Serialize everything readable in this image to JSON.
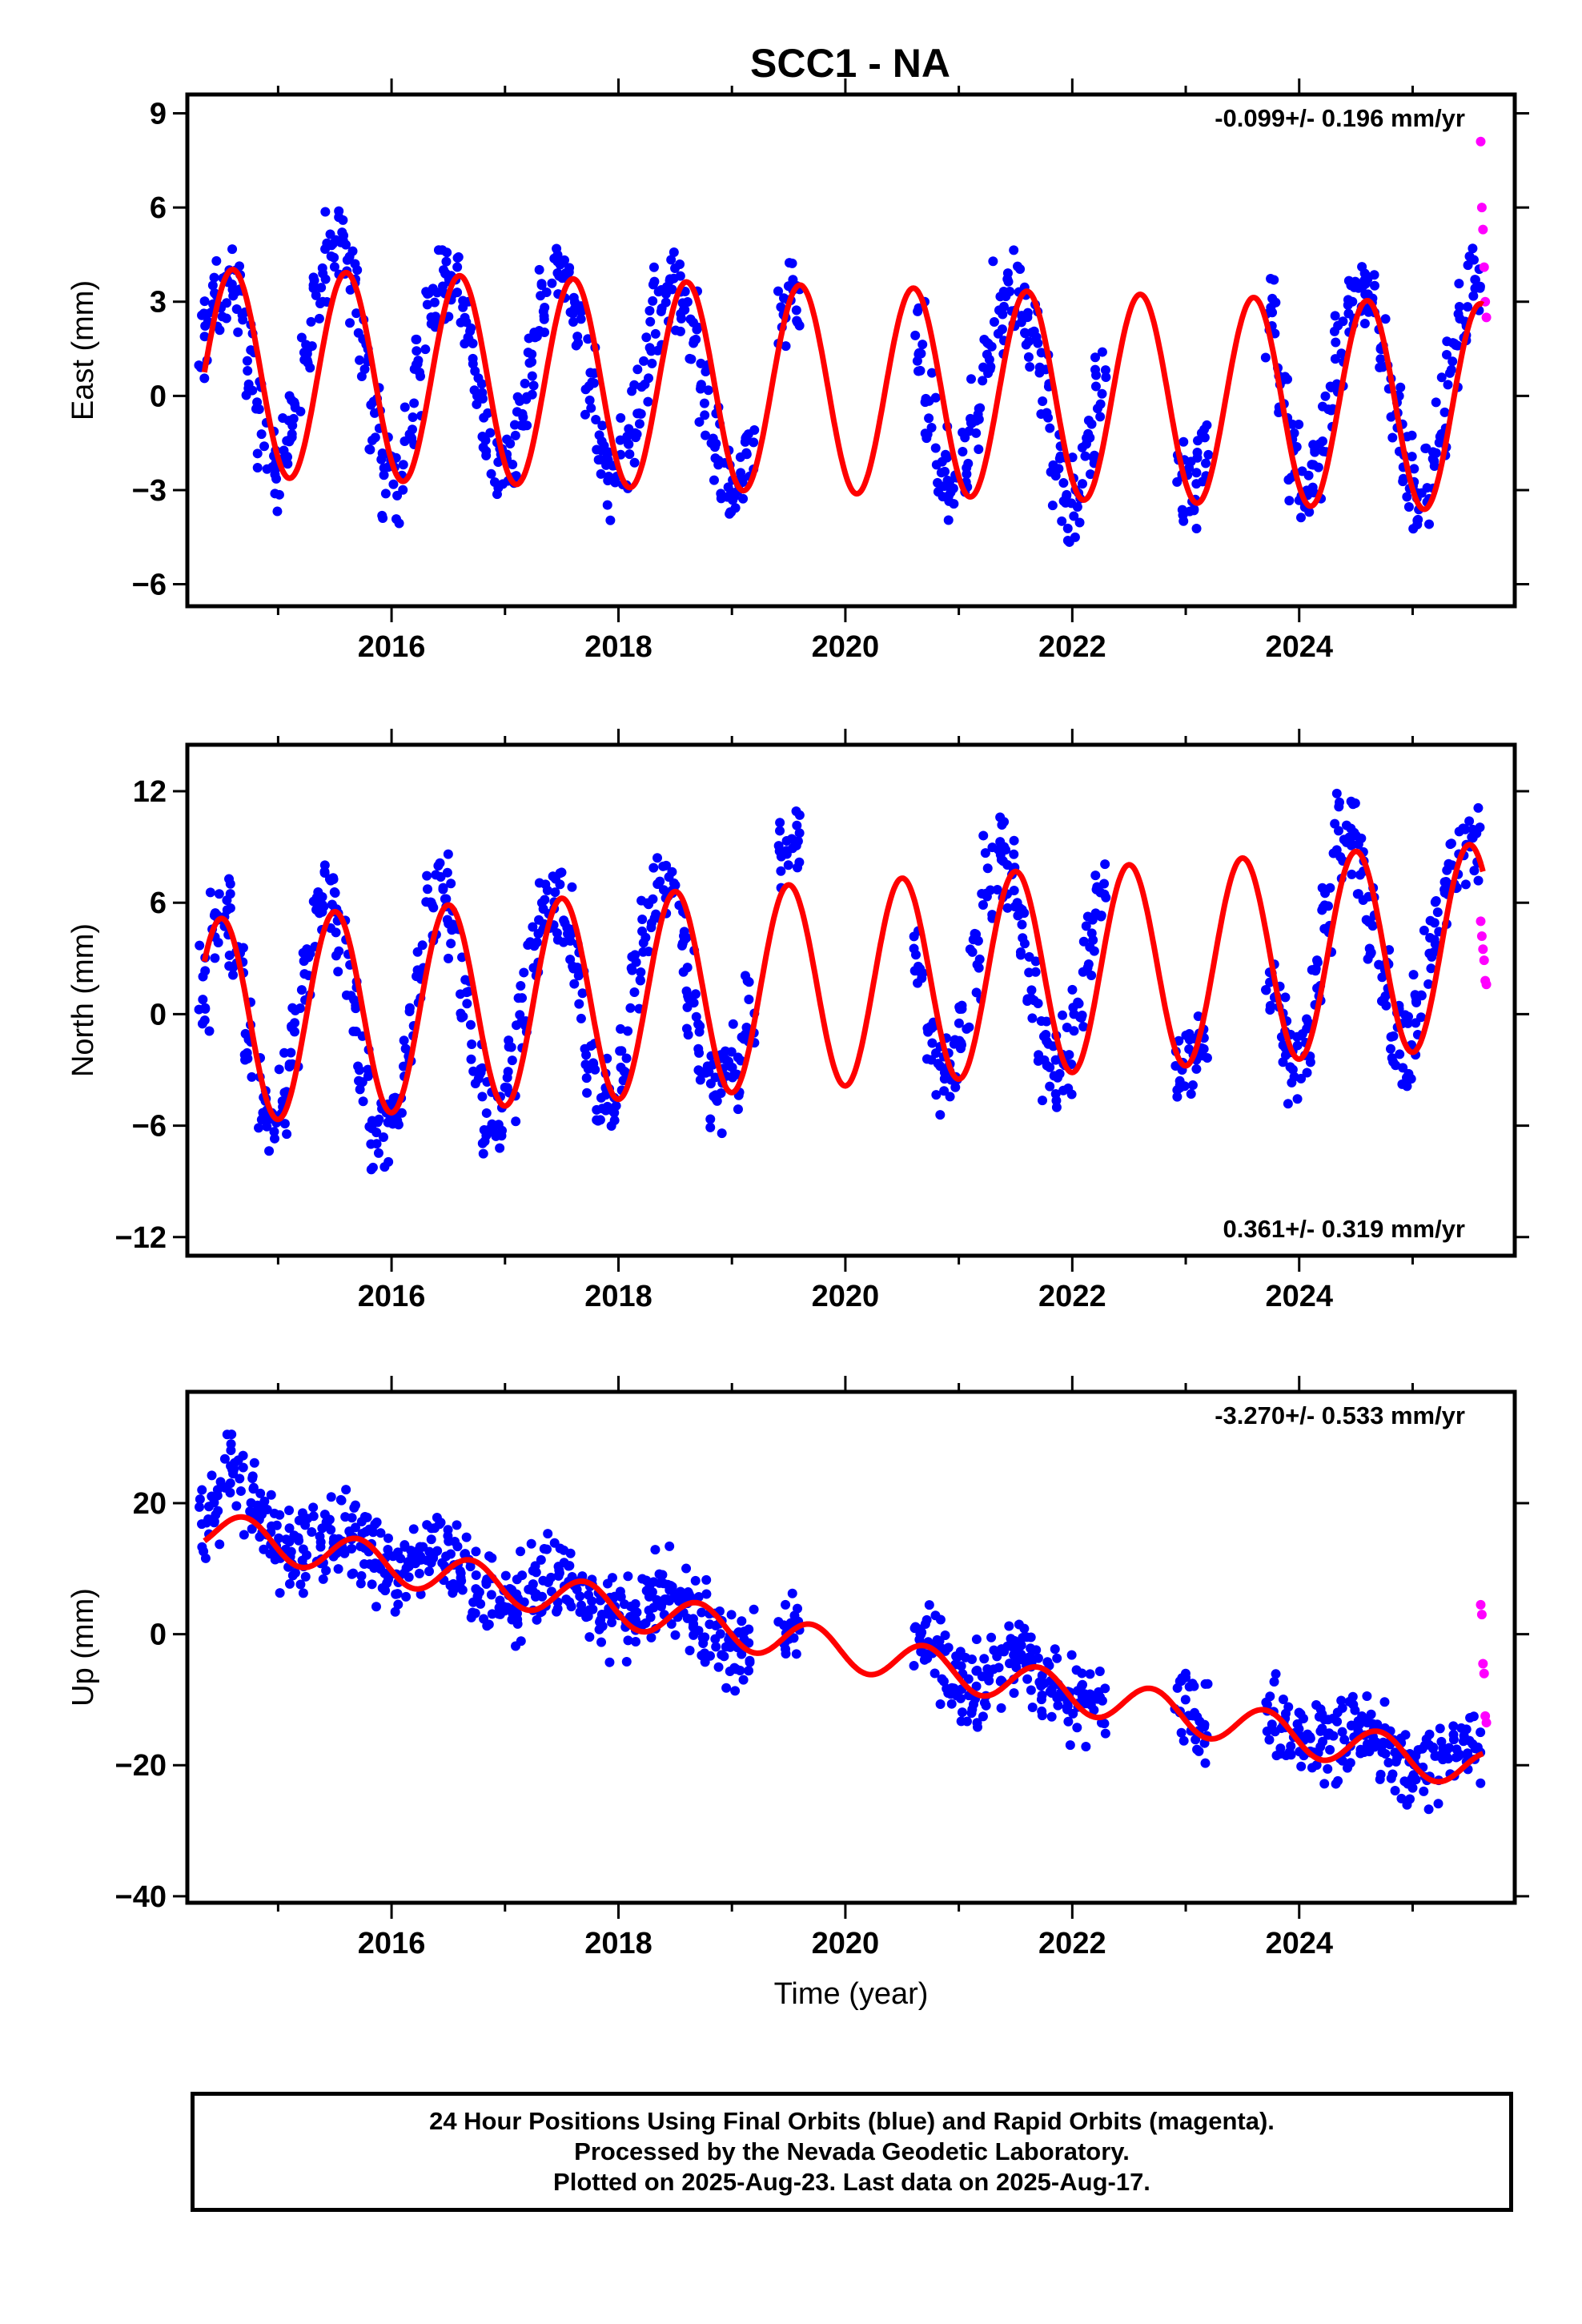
{
  "title": "SCC1 - NA",
  "chart_data": [
    {
      "type": "scatter",
      "ylabel": "East (mm)",
      "xlabel": "",
      "rate_label": "-0.099+/- 0.196 mm/yr",
      "xlim": [
        2014.2,
        2025.9
      ],
      "ylim": [
        -6.7,
        9.6
      ],
      "yticks": [
        -6,
        -3,
        0,
        3,
        6,
        9
      ],
      "xticks": [
        2016,
        2018,
        2020,
        2022,
        2024
      ],
      "xtick_labels": [
        "2016",
        "2018",
        "2020",
        "2022",
        "2024"
      ],
      "model": {
        "offset": 0.75,
        "rate_mm_yr": -0.099,
        "amplitude": 3.3,
        "peak_phase_yr": 0.6
      },
      "series": [
        {
          "color": "#0000ff",
          "x": [
            2014.35,
            2014.45,
            2014.55,
            2014.65,
            2014.75,
            2014.85,
            2014.95,
            2015.05,
            2015.15,
            2015.25,
            2015.35,
            2015.45,
            2015.55,
            2015.65,
            2015.75,
            2015.85,
            2015.95,
            2016.05,
            2016.15,
            2016.25,
            2016.35,
            2016.45,
            2016.55,
            2016.65,
            2016.75,
            2016.85,
            2016.95,
            2017.05,
            2017.15,
            2017.25,
            2017.35,
            2017.45,
            2017.55,
            2017.65,
            2017.75,
            2017.85,
            2017.95,
            2018.05,
            2018.15,
            2018.25,
            2018.35,
            2018.45,
            2018.55,
            2018.65,
            2018.75,
            2018.85,
            2018.95,
            2019.05,
            2019.15,
            2019.45,
            2019.55,
            2020.65,
            2020.75,
            2020.85,
            2020.95,
            2021.05,
            2021.15,
            2021.25,
            2021.35,
            2021.45,
            2021.55,
            2021.65,
            2021.75,
            2021.85,
            2021.95,
            2022.05,
            2022.15,
            2022.25,
            2022.95,
            2023.05,
            2023.15,
            2023.75,
            2023.85,
            2023.95,
            2024.05,
            2024.15,
            2024.25,
            2024.35,
            2024.45,
            2024.55,
            2024.65,
            2024.75,
            2024.85,
            2024.95,
            2025.05,
            2025.15,
            2025.25,
            2025.35,
            2025.45,
            2025.55
          ],
          "y": [
            1.9,
            3.1,
            3.9,
            3.4,
            1.3,
            -0.9,
            -2.3,
            -1.8,
            -0.5,
            1.4,
            3.1,
            4.3,
            4.8,
            3.6,
            1.5,
            -0.8,
            -2.4,
            -2.8,
            -1.3,
            0.9,
            2.8,
            4.0,
            3.7,
            2.3,
            0.2,
            -1.6,
            -2.6,
            -2.2,
            -0.7,
            1.2,
            2.9,
            3.8,
            3.4,
            2.3,
            0.4,
            -1.5,
            -2.6,
            -2.1,
            -0.6,
            1.3,
            2.7,
            3.6,
            3.5,
            2.1,
            0.1,
            -1.8,
            -2.9,
            -2.6,
            -1.2,
            2.6,
            3.4,
            1.9,
            -0.3,
            -2.4,
            -3.0,
            -2.0,
            -0.4,
            1.4,
            2.8,
            3.3,
            3.1,
            1.8,
            -0.1,
            -2.2,
            -3.3,
            -3.0,
            -1.6,
            0.4,
            -2.9,
            -3.3,
            -2.1,
            2.4,
            0.3,
            -2.1,
            -3.5,
            -2.5,
            -0.6,
            1.3,
            2.7,
            3.2,
            2.9,
            1.4,
            -0.5,
            -2.4,
            -3.6,
            -2.8,
            -0.9,
            1.2,
            2.8,
            4.0
          ]
        },
        {
          "color": "#ff00ff",
          "x": [
            2025.6,
            2025.61,
            2025.62,
            2025.63,
            2025.64,
            2025.65
          ],
          "y": [
            8.1,
            6.0,
            5.3,
            4.1,
            3.0,
            2.5
          ]
        }
      ]
    },
    {
      "type": "scatter",
      "ylabel": "North (mm)",
      "xlabel": "",
      "rate_label": "0.361+/- 0.319 mm/yr",
      "xlim": [
        2014.2,
        2025.9
      ],
      "ylim": [
        -13,
        14.5
      ],
      "yticks": [
        -12,
        -6,
        0,
        6,
        12
      ],
      "ytick_labels": [
        "−12",
        "−6",
        "0",
        "6",
        "12"
      ],
      "xticks": [
        2016,
        2018,
        2020,
        2022,
        2024
      ],
      "xtick_labels": [
        "2016",
        "2018",
        "2020",
        "2022",
        "2024"
      ],
      "model": {
        "offset": -0.4,
        "rate_mm_yr": 0.361,
        "amplitude": 5.5,
        "peak_phase_yr": 0.5
      },
      "series": [
        {
          "color": "#0000ff",
          "x": [
            2014.35,
            2014.45,
            2014.55,
            2014.65,
            2014.75,
            2014.85,
            2014.95,
            2015.05,
            2015.15,
            2015.25,
            2015.35,
            2015.45,
            2015.55,
            2015.65,
            2015.75,
            2015.85,
            2015.95,
            2016.05,
            2016.15,
            2016.25,
            2016.35,
            2016.45,
            2016.55,
            2016.65,
            2016.75,
            2016.85,
            2016.95,
            2017.05,
            2017.15,
            2017.25,
            2017.35,
            2017.45,
            2017.55,
            2017.65,
            2017.75,
            2017.85,
            2017.95,
            2018.05,
            2018.15,
            2018.25,
            2018.35,
            2018.45,
            2018.55,
            2018.65,
            2018.75,
            2018.85,
            2018.95,
            2019.05,
            2019.15,
            2019.45,
            2019.55,
            2020.65,
            2020.75,
            2020.85,
            2020.95,
            2021.05,
            2021.15,
            2021.25,
            2021.35,
            2021.45,
            2021.55,
            2021.65,
            2021.75,
            2021.85,
            2021.95,
            2022.05,
            2022.15,
            2022.25,
            2022.95,
            2023.05,
            2023.15,
            2023.75,
            2023.85,
            2023.95,
            2024.05,
            2024.15,
            2024.25,
            2024.35,
            2024.45,
            2024.55,
            2024.65,
            2024.75,
            2024.85,
            2024.95,
            2025.05,
            2025.15,
            2025.25,
            2025.35,
            2025.45,
            2025.55
          ],
          "y": [
            1.5,
            4.6,
            5.2,
            2.6,
            -1.4,
            -4.8,
            -6.0,
            -4.4,
            -0.9,
            2.9,
            5.6,
            6.4,
            4.5,
            0.9,
            -3.0,
            -5.9,
            -6.4,
            -5.0,
            -1.6,
            2.7,
            5.6,
            6.6,
            4.5,
            0.8,
            -3.2,
            -5.5,
            -5.6,
            -3.4,
            0.3,
            3.7,
            6.0,
            6.4,
            4.4,
            1.3,
            -2.6,
            -4.9,
            -4.6,
            -2.6,
            1.2,
            4.7,
            6.9,
            6.9,
            4.6,
            0.9,
            -2.9,
            -4.4,
            -4.2,
            -2.6,
            0.3,
            8.5,
            9.2,
            2.5,
            -1.1,
            -3.1,
            -3.0,
            -0.9,
            3.1,
            7.0,
            8.6,
            7.7,
            4.8,
            1.1,
            -2.2,
            -3.5,
            -2.7,
            0.1,
            3.7,
            6.8,
            -3.0,
            -2.4,
            -0.6,
            2.0,
            -0.5,
            -2.4,
            -1.5,
            1.5,
            5.3,
            9.5,
            10.2,
            7.8,
            4.6,
            1.4,
            -1.4,
            -2.1,
            -0.2,
            3.0,
            6.1,
            7.8,
            8.4,
            9.3
          ]
        },
        {
          "color": "#ff00ff",
          "x": [
            2025.6,
            2025.61,
            2025.62,
            2025.63,
            2025.64,
            2025.65
          ],
          "y": [
            5.0,
            4.2,
            3.5,
            2.9,
            1.8,
            1.6
          ]
        }
      ]
    },
    {
      "type": "scatter",
      "ylabel": "Up (mm)",
      "xlabel": "Time (year)",
      "rate_label": "-3.270+/- 0.533 mm/yr",
      "xlim": [
        2014.2,
        2025.9
      ],
      "ylim": [
        -41,
        37
      ],
      "yticks": [
        -40,
        -20,
        0,
        20
      ],
      "ytick_labels": [
        "−40",
        "−20",
        "0",
        "20"
      ],
      "xticks": [
        2016,
        2018,
        2020,
        2022,
        2024
      ],
      "xtick_labels": [
        "2016",
        "2018",
        "2020",
        "2022",
        "2024"
      ],
      "model": {
        "offset": 16.0,
        "rate_mm_yr": -3.27,
        "amplitude": 3.0,
        "peak_phase_yr": 0.7
      },
      "series": [
        {
          "color": "#0000ff",
          "x": [
            2014.35,
            2014.45,
            2014.55,
            2014.65,
            2014.75,
            2014.85,
            2014.95,
            2015.05,
            2015.15,
            2015.25,
            2015.35,
            2015.45,
            2015.55,
            2015.65,
            2015.75,
            2015.85,
            2015.95,
            2016.05,
            2016.15,
            2016.25,
            2016.35,
            2016.45,
            2016.55,
            2016.65,
            2016.75,
            2016.85,
            2016.95,
            2017.05,
            2017.15,
            2017.25,
            2017.35,
            2017.45,
            2017.55,
            2017.65,
            2017.75,
            2017.85,
            2017.95,
            2018.05,
            2018.15,
            2018.25,
            2018.35,
            2018.45,
            2018.55,
            2018.65,
            2018.75,
            2018.85,
            2018.95,
            2019.05,
            2019.15,
            2019.45,
            2019.55,
            2020.65,
            2020.75,
            2020.85,
            2020.95,
            2021.05,
            2021.15,
            2021.25,
            2021.35,
            2021.45,
            2021.55,
            2021.65,
            2021.75,
            2021.85,
            2021.95,
            2022.05,
            2022.15,
            2022.25,
            2022.95,
            2023.05,
            2023.15,
            2023.75,
            2023.85,
            2023.95,
            2024.05,
            2024.15,
            2024.25,
            2024.35,
            2024.45,
            2024.55,
            2024.65,
            2024.75,
            2024.85,
            2024.95,
            2025.05,
            2025.15,
            2025.25,
            2025.35,
            2025.45,
            2025.55
          ],
          "y": [
            17,
            19,
            24,
            22,
            19,
            16,
            14,
            13,
            12,
            13,
            15,
            17,
            16,
            14,
            12,
            10,
            9,
            9,
            10,
            11,
            13,
            13,
            12,
            10,
            8,
            6,
            5,
            5,
            6,
            7,
            8,
            9,
            8,
            6,
            4,
            3,
            3,
            3,
            4,
            5,
            6,
            6,
            5,
            4,
            2,
            0,
            -2,
            -3,
            -3,
            -1,
            0,
            -2,
            -3,
            -5,
            -7,
            -8,
            -8,
            -7,
            -6,
            -5,
            -5,
            -5,
            -6,
            -8,
            -10,
            -11,
            -10,
            -9,
            -11,
            -12,
            -13,
            -11,
            -12,
            -14,
            -16,
            -17,
            -17,
            -16,
            -15,
            -15,
            -16,
            -18,
            -19,
            -20,
            -20,
            -20,
            -19,
            -18,
            -18,
            -17
          ]
        },
        {
          "color": "#ff00ff",
          "x": [
            2025.6,
            2025.61,
            2025.62,
            2025.63,
            2025.64,
            2025.65
          ],
          "y": [
            4.5,
            3.0,
            -4.5,
            -6.0,
            -12.5,
            -13.5
          ]
        }
      ]
    }
  ],
  "footer": {
    "line1": "24 Hour Positions Using Final Orbits (blue) and Rapid Orbits (magenta).",
    "line2": "Processed by the Nevada Geodetic Laboratory.",
    "line3": "Plotted on 2025-Aug-23. Last data on 2025-Aug-17."
  }
}
